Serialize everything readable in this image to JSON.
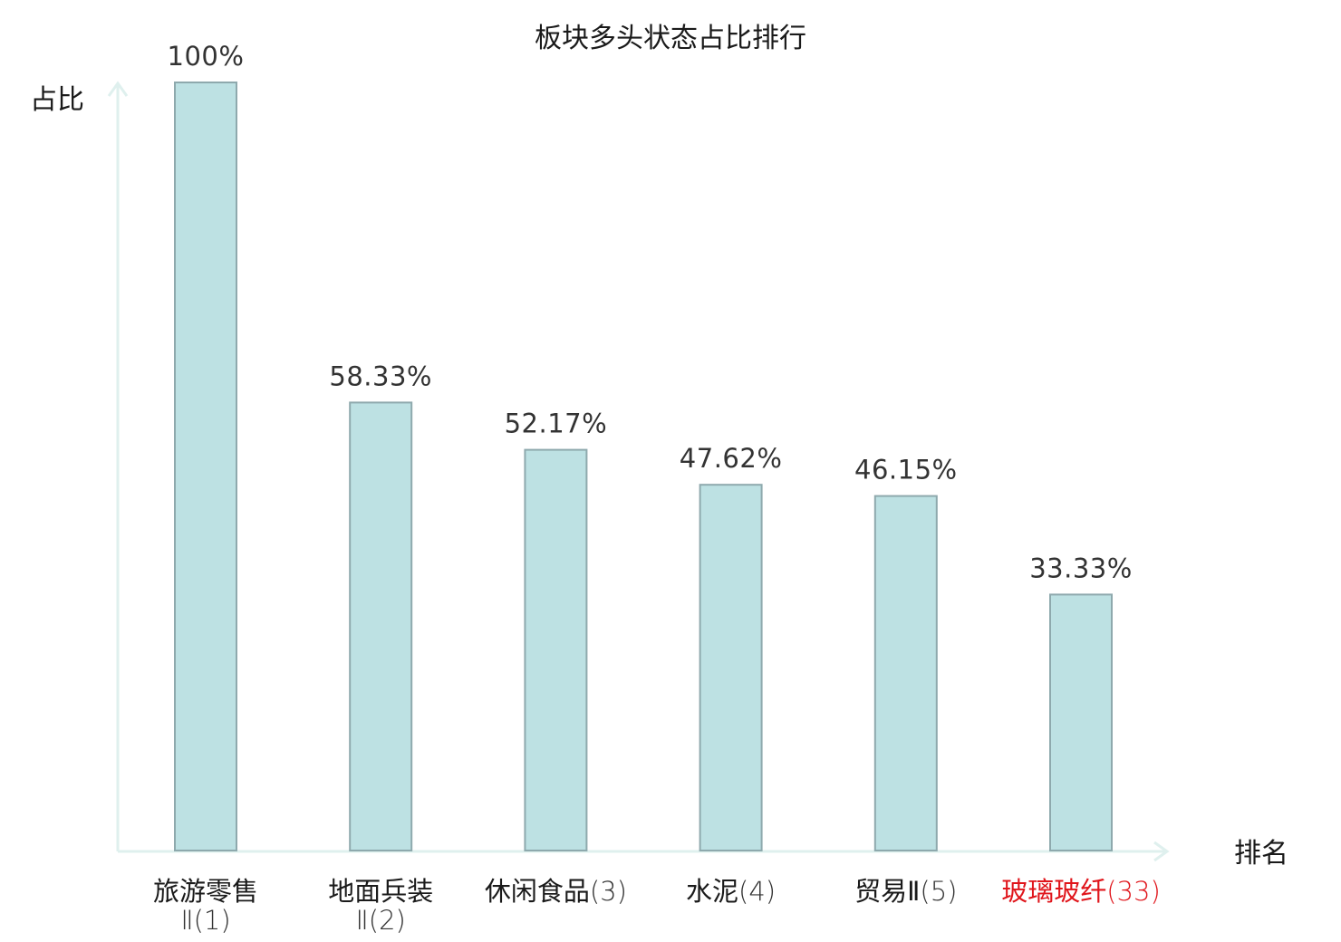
{
  "chart_data": {
    "type": "bar",
    "title": "板块多头状态占比排行",
    "ylabel": "占比",
    "xlabel": "排名",
    "ylim": [
      0,
      100
    ],
    "categories": [
      {
        "line1": "旅游零售",
        "name2": "Ⅱ",
        "rank": "(1)",
        "highlight": false
      },
      {
        "line1": "地面兵装",
        "name2": "Ⅱ",
        "rank": "(2)",
        "highlight": false
      },
      {
        "line1": "休闲食品",
        "name2": "",
        "rank": "(3)",
        "highlight": false
      },
      {
        "line1": "水泥",
        "name2": "",
        "rank": "(4)",
        "highlight": false
      },
      {
        "line1": "贸易Ⅱ",
        "name2": "",
        "rank": "(5)",
        "highlight": false
      },
      {
        "line1": "玻璃玻纤",
        "name2": "",
        "rank": "(33)",
        "highlight": true
      }
    ],
    "values": [
      100,
      58.33,
      52.17,
      47.62,
      46.15,
      33.33
    ],
    "value_labels": [
      "100%",
      "58.33%",
      "52.17%",
      "47.62%",
      "46.15%",
      "33.33%"
    ],
    "grid": false,
    "legend": "none",
    "colors": {
      "bar_fill": "#bde1e3",
      "bar_stroke": "#8ea9ad",
      "axis": "#dff0ee",
      "text": "#1a1a1a",
      "rank_text": "#333333",
      "highlight": "#e0151b"
    }
  }
}
